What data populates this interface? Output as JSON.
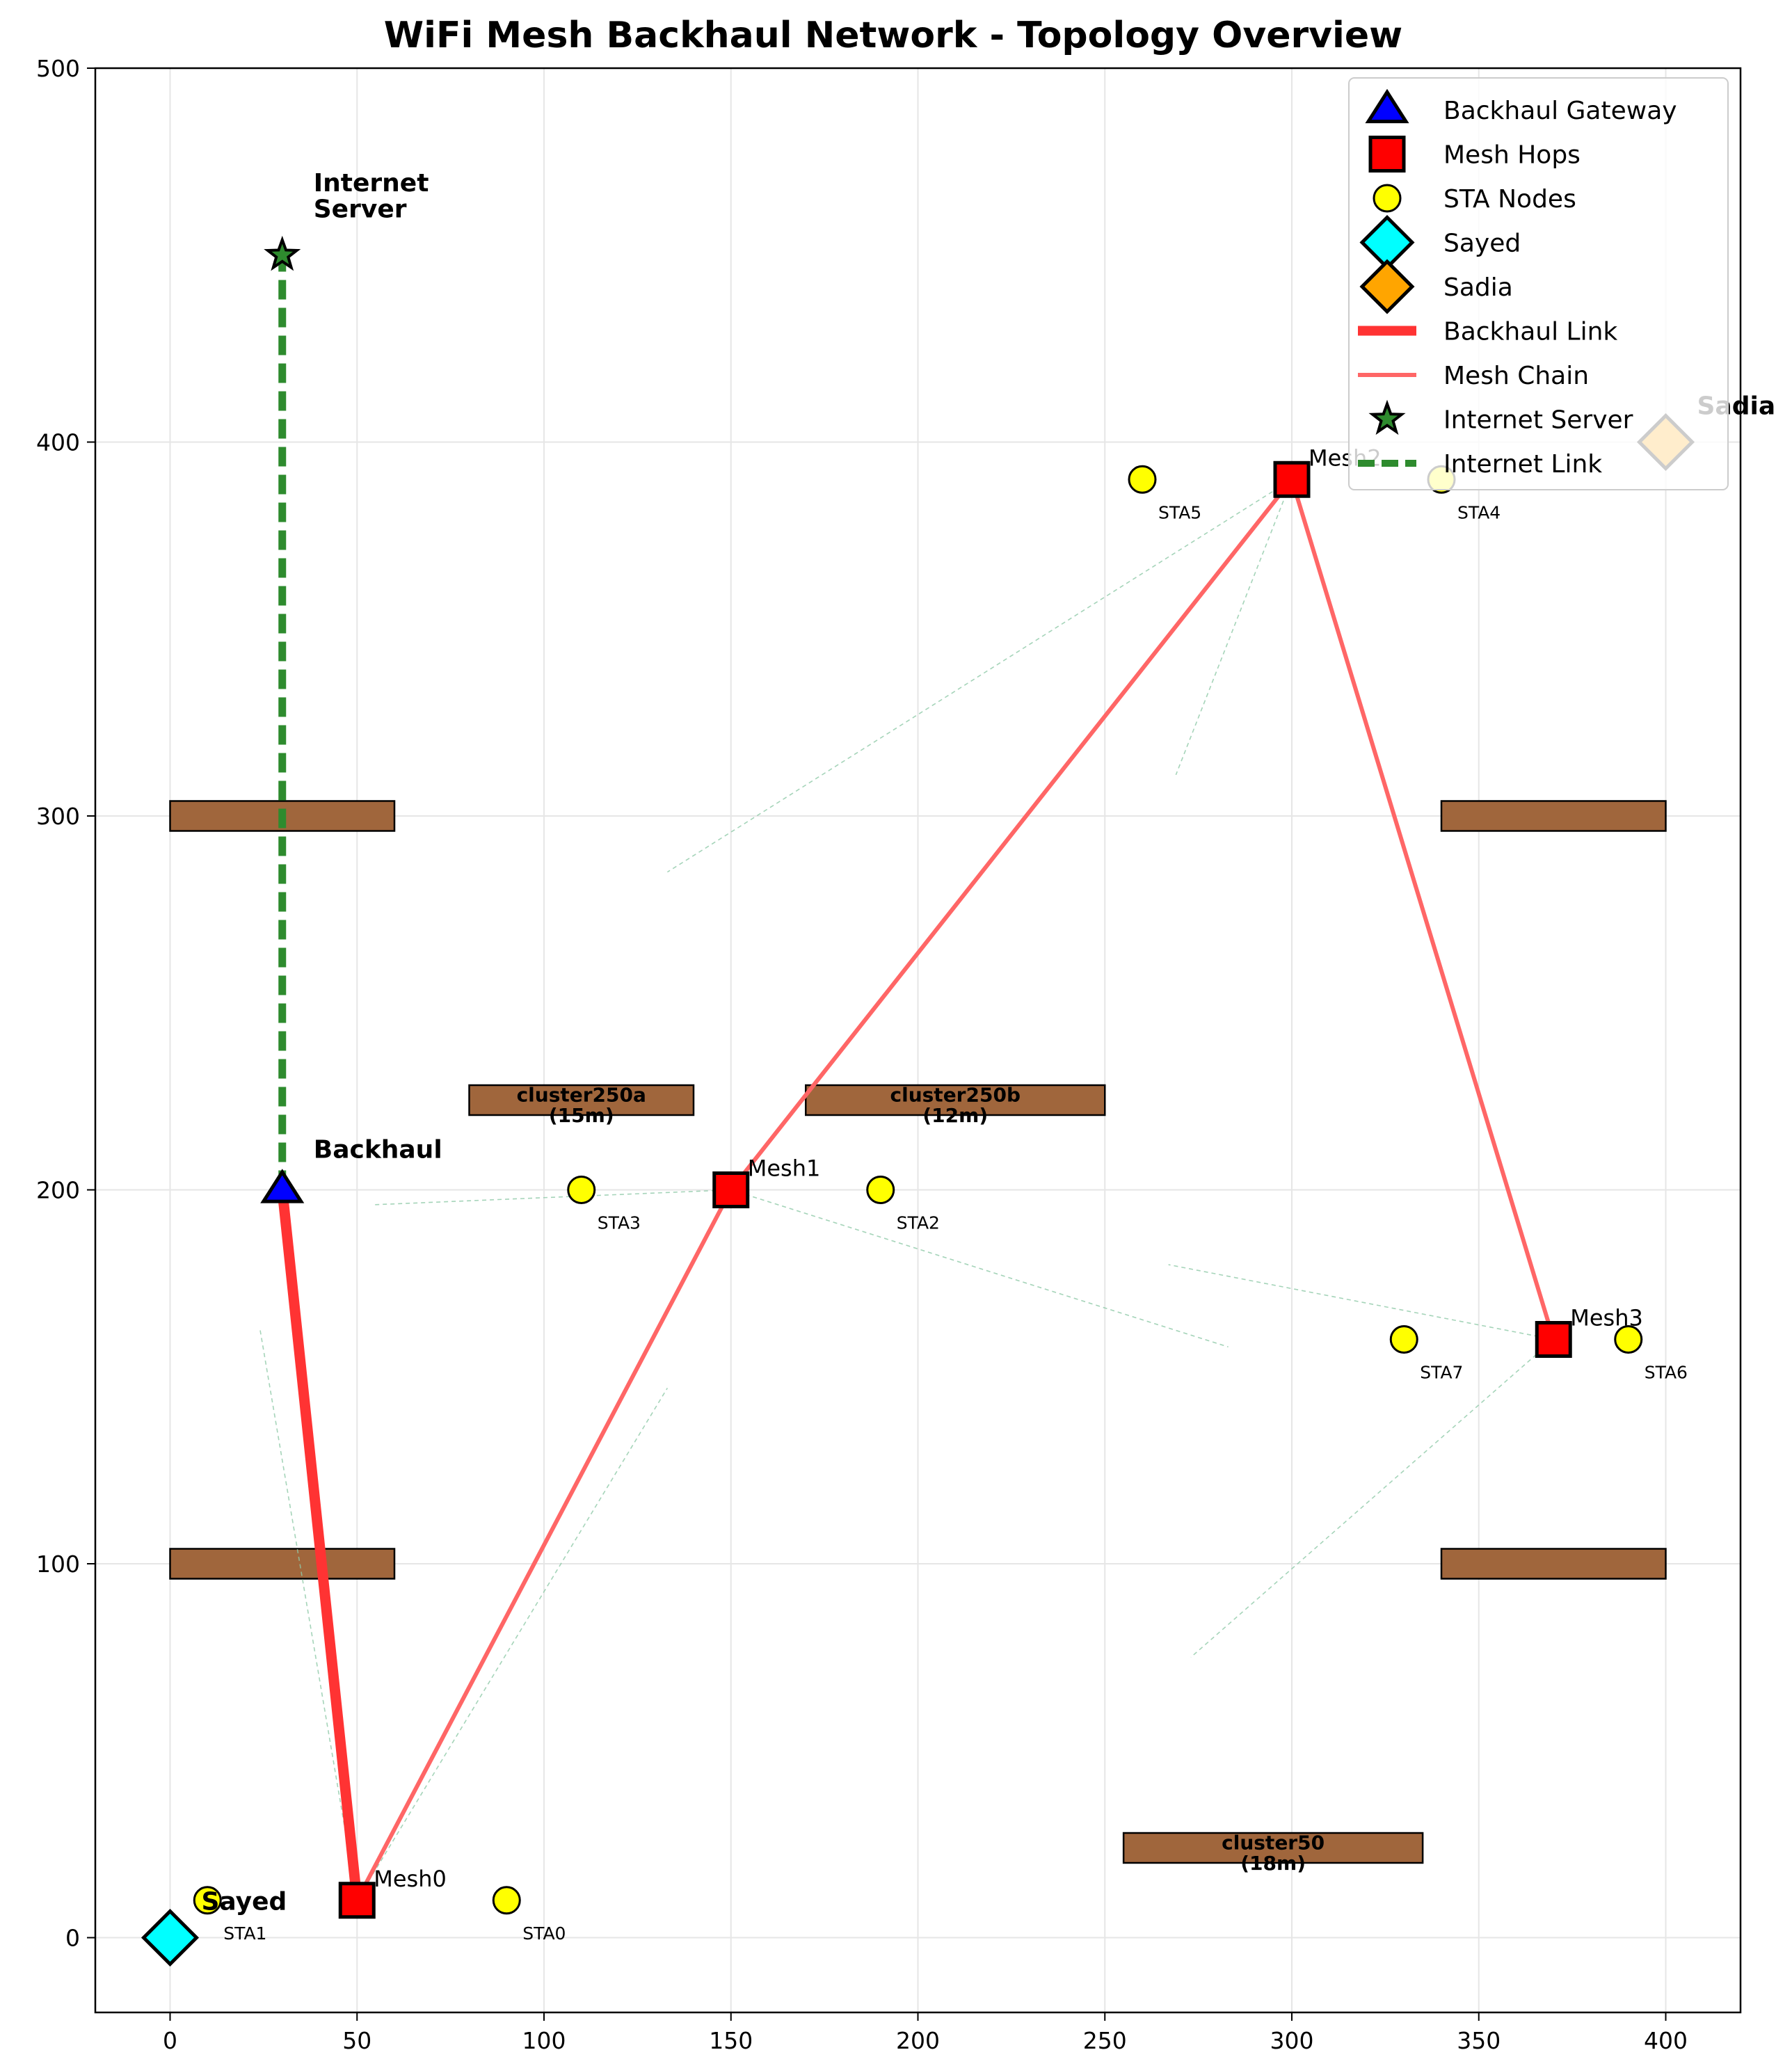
{
  "chart_data": {
    "type": "scatter",
    "title": "WiFi Mesh Backhaul Network - Topology Overview",
    "xlabel": "",
    "ylabel": "",
    "xlim": [
      -20,
      420
    ],
    "ylim": [
      -20,
      500
    ],
    "grid": true,
    "x_ticks": [
      0,
      50,
      100,
      150,
      200,
      250,
      300,
      350,
      400
    ],
    "y_ticks": [
      0,
      100,
      200,
      300,
      400,
      500
    ],
    "colors": {
      "gateway": "#0000ff",
      "mesh": "#ff0000",
      "sta": "#ffff00",
      "sayed": "#00ffff",
      "sadia": "#ffa500",
      "backhaul_link": "#ff3333",
      "mesh_chain": "#ff6666",
      "internet_link": "#2e8b2e",
      "obstacle": "#a0663c",
      "faint_line": "#8fc9a8"
    },
    "gateway": {
      "name": "Backhaul",
      "x": 30,
      "y": 200
    },
    "internet_server": {
      "name": "Internet\nServer",
      "x": 30,
      "y": 450
    },
    "mesh_hops": [
      {
        "name": "Mesh0",
        "x": 50,
        "y": 10
      },
      {
        "name": "Mesh1",
        "x": 150,
        "y": 200
      },
      {
        "name": "Mesh2",
        "x": 300,
        "y": 390
      },
      {
        "name": "Mesh3",
        "x": 370,
        "y": 160
      }
    ],
    "sta_nodes": [
      {
        "name": "STA0",
        "x": 90,
        "y": 10
      },
      {
        "name": "STA1",
        "x": 10,
        "y": 10
      },
      {
        "name": "STA2",
        "x": 190,
        "y": 200
      },
      {
        "name": "STA3",
        "x": 110,
        "y": 200
      },
      {
        "name": "STA4",
        "x": 340,
        "y": 390
      },
      {
        "name": "STA5",
        "x": 260,
        "y": 390
      },
      {
        "name": "STA6",
        "x": 390,
        "y": 160
      },
      {
        "name": "STA7",
        "x": 330,
        "y": 160
      }
    ],
    "users": [
      {
        "name": "Sayed",
        "x": 0,
        "y": 0
      },
      {
        "name": "Sadia",
        "x": 400,
        "y": 400
      }
    ],
    "backhaul_link": [
      [
        30,
        200
      ],
      [
        50,
        10
      ]
    ],
    "mesh_chain": [
      [
        50,
        10
      ],
      [
        150,
        200
      ],
      [
        300,
        390
      ],
      [
        370,
        160
      ]
    ],
    "internet_link": [
      [
        30,
        200
      ],
      [
        30,
        450
      ]
    ],
    "obstacles": [
      {
        "x0": 0,
        "x1": 60,
        "y0": 296,
        "y1": 304,
        "label": ""
      },
      {
        "x0": 340,
        "x1": 400,
        "y0": 296,
        "y1": 304,
        "label": ""
      },
      {
        "x0": 0,
        "x1": 60,
        "y0": 96,
        "y1": 104,
        "label": ""
      },
      {
        "x0": 340,
        "x1": 400,
        "y0": 96,
        "y1": 104,
        "label": ""
      },
      {
        "x0": 80,
        "x1": 140,
        "y0": 220,
        "y1": 228,
        "label": "cluster250a\n(15m)"
      },
      {
        "x0": 170,
        "x1": 250,
        "y0": 220,
        "y1": 228,
        "label": "cluster250b\n(12m)"
      },
      {
        "x0": 255,
        "x1": 335,
        "y0": 20,
        "y1": 28,
        "label": "cluster50\n(18m)"
      }
    ],
    "faint_links": [
      [
        [
          300,
          390
        ],
        [
          133,
          285
        ]
      ],
      [
        [
          300,
          390
        ],
        [
          269,
          311
        ]
      ],
      [
        [
          150,
          200
        ],
        [
          54,
          196
        ]
      ],
      [
        [
          150,
          200
        ],
        [
          283,
          158
        ]
      ],
      [
        [
          370,
          160
        ],
        [
          267,
          180
        ]
      ],
      [
        [
          370,
          160
        ],
        [
          273,
          75
        ]
      ],
      [
        [
          50,
          10
        ],
        [
          24,
          163
        ]
      ],
      [
        [
          50,
          10
        ],
        [
          133,
          147
        ]
      ]
    ],
    "legend": {
      "location": "upper right",
      "entries": [
        {
          "label": "Backhaul Gateway",
          "kind": "triangle"
        },
        {
          "label": "Mesh Hops",
          "kind": "square"
        },
        {
          "label": "STA Nodes",
          "kind": "circle"
        },
        {
          "label": "Sayed",
          "kind": "diamond-cyan"
        },
        {
          "label": "Sadia",
          "kind": "diamond-orange"
        },
        {
          "label": "Backhaul Link",
          "kind": "thick-line"
        },
        {
          "label": "Mesh Chain",
          "kind": "line"
        },
        {
          "label": "Internet Server",
          "kind": "star"
        },
        {
          "label": "Internet Link",
          "kind": "dashed-line"
        }
      ]
    }
  }
}
